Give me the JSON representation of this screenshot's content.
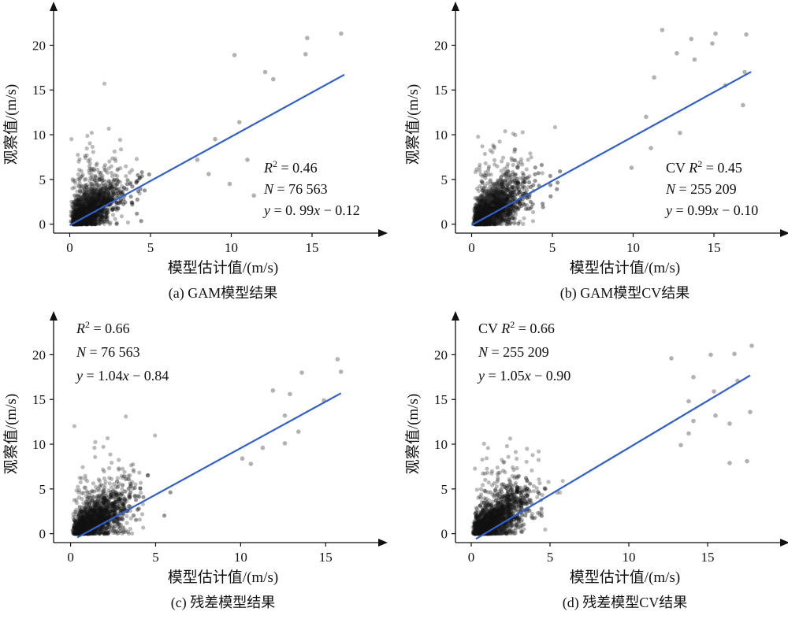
{
  "chart_data": [
    {
      "type": "scatter",
      "panel": "a",
      "xlabel": "模型估计值/(m/s)",
      "ylabel": "观察值/(m/s)",
      "caption": "(a) GAM模型结果",
      "xlim": [
        -1,
        19
      ],
      "ylim": [
        -1,
        24
      ],
      "xticks": [
        0,
        5,
        10,
        15
      ],
      "yticks": [
        0,
        5,
        10,
        15,
        20
      ],
      "annotation": {
        "prefix": "",
        "r2": "0.46",
        "n": "76 563",
        "eq": "0. 99x − 0.12"
      },
      "fit_line": {
        "slope": 0.99,
        "intercept": -0.12,
        "x": [
          0,
          17
        ],
        "color": "#3060c8"
      },
      "cloud": {
        "center": [
          2.2,
          2.6
        ],
        "spread": [
          1.3,
          2.2
        ],
        "xmax": 9,
        "ymax": 20
      },
      "outliers": [
        [
          16.8,
          21.3
        ],
        [
          14.7,
          20.8
        ],
        [
          10.2,
          18.9
        ],
        [
          12.1,
          17.0
        ],
        [
          14.6,
          19.0
        ],
        [
          12.6,
          16.2
        ],
        [
          10.5,
          11.4
        ],
        [
          9.0,
          9.5
        ],
        [
          11.0,
          7.2
        ],
        [
          8.6,
          5.6
        ],
        [
          9.9,
          4.5
        ],
        [
          11.4,
          3.2
        ],
        [
          7.9,
          7.2
        ]
      ]
    },
    {
      "type": "scatter",
      "panel": "b",
      "xlabel": "模型估计值/(m/s)",
      "ylabel": "观察值/(m/s)",
      "caption": "(b) GAM模型CV结果",
      "xlim": [
        -1,
        19
      ],
      "ylim": [
        -1,
        24
      ],
      "xticks": [
        0,
        5,
        10,
        15
      ],
      "yticks": [
        0,
        5,
        10,
        15,
        20
      ],
      "annotation": {
        "prefix": "CV ",
        "r2": "0.45",
        "n": "255 209",
        "eq": "0.99x − 0.10"
      },
      "fit_line": {
        "slope": 0.99,
        "intercept": -0.1,
        "x": [
          0,
          17.3
        ],
        "color": "#3060c8"
      },
      "cloud": {
        "center": [
          2.3,
          2.8
        ],
        "spread": [
          1.4,
          2.4
        ],
        "xmax": 10,
        "ymax": 20
      },
      "outliers": [
        [
          11.8,
          21.7
        ],
        [
          15.1,
          21.3
        ],
        [
          17.0,
          21.2
        ],
        [
          13.6,
          20.7
        ],
        [
          14.9,
          20.2
        ],
        [
          12.7,
          19.1
        ],
        [
          13.8,
          18.4
        ],
        [
          16.9,
          17.0
        ],
        [
          11.3,
          16.4
        ],
        [
          15.7,
          15.5
        ],
        [
          16.8,
          13.3
        ],
        [
          10.8,
          12.0
        ],
        [
          12.9,
          10.2
        ],
        [
          11.1,
          8.5
        ],
        [
          9.9,
          6.3
        ]
      ]
    },
    {
      "type": "scatter",
      "panel": "c",
      "xlabel": "模型估计值/(m/s)",
      "ylabel": "观察值/(m/s)",
      "caption": "(c) 残差模型结果",
      "xlim": [
        -1,
        18
      ],
      "ylim": [
        -1,
        24
      ],
      "xticks": [
        0,
        5,
        10,
        15
      ],
      "yticks": [
        0,
        5,
        10,
        15,
        20
      ],
      "annotation": {
        "prefix": "",
        "r2": "0.66",
        "n": "76 563",
        "eq": "1.04x − 0.84"
      },
      "fit_line": {
        "slope": 1.04,
        "intercept": -0.84,
        "x": [
          0.4,
          15.9
        ],
        "color": "#3060c8"
      },
      "cloud": {
        "center": [
          3.2,
          2.6
        ],
        "spread": [
          1.6,
          2.0
        ],
        "xmax": 10,
        "ymax": 17
      },
      "outliers": [
        [
          15.7,
          19.5
        ],
        [
          13.6,
          18.0
        ],
        [
          15.9,
          18.1
        ],
        [
          11.9,
          16.0
        ],
        [
          14.9,
          14.9
        ],
        [
          12.6,
          13.2
        ],
        [
          13.4,
          11.4
        ],
        [
          12.6,
          10.1
        ],
        [
          11.3,
          9.6
        ],
        [
          10.6,
          7.8
        ],
        [
          10.1,
          8.4
        ],
        [
          12.9,
          15.6
        ]
      ]
    },
    {
      "type": "scatter",
      "panel": "d",
      "xlabel": "模型估计值/(m/s)",
      "ylabel": "观察值/(m/s)",
      "caption": "(d) 残差模型CV结果",
      "xlim": [
        -1,
        19.5
      ],
      "ylim": [
        -1,
        24
      ],
      "xticks": [
        0,
        5,
        10,
        15
      ],
      "yticks": [
        0,
        5,
        10,
        15,
        20
      ],
      "annotation": {
        "prefix": "CV ",
        "r2": "0.66",
        "n": "255 209",
        "eq": "1.05x − 0.90"
      },
      "fit_line": {
        "slope": 1.05,
        "intercept": -0.9,
        "x": [
          0.3,
          17.7
        ],
        "color": "#3060c8"
      },
      "cloud": {
        "center": [
          3.3,
          2.7
        ],
        "spread": [
          1.7,
          2.2
        ],
        "xmax": 11,
        "ymax": 19
      },
      "outliers": [
        [
          17.8,
          21.0
        ],
        [
          16.7,
          20.1
        ],
        [
          15.2,
          20.0
        ],
        [
          12.7,
          19.6
        ],
        [
          16.9,
          17.1
        ],
        [
          14.1,
          17.5
        ],
        [
          15.4,
          15.9
        ],
        [
          13.8,
          14.8
        ],
        [
          16.4,
          12.3
        ],
        [
          17.7,
          13.6
        ],
        [
          15.5,
          13.2
        ],
        [
          14.1,
          12.6
        ],
        [
          17.5,
          8.1
        ],
        [
          16.4,
          7.9
        ],
        [
          13.3,
          9.9
        ],
        [
          13.8,
          11.2
        ]
      ]
    }
  ]
}
